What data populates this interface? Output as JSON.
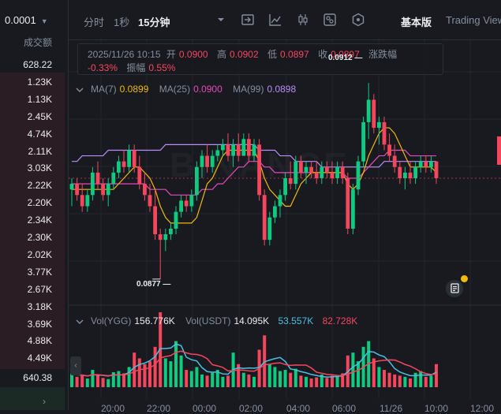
{
  "orderbook": {
    "precision": "0.0001",
    "column_header": "成交额",
    "asks": [
      "628.22",
      "1.23K",
      "1.13K",
      "2.45K",
      "4.74K",
      "2.11K",
      "3.03K",
      "2.22K",
      "2.20K",
      "2.34K",
      "2.30K",
      "2.02K",
      "3.77K",
      "2.67K",
      "3.18K",
      "3.69K",
      "4.88K",
      "4.49K"
    ],
    "bid_top": "640.38"
  },
  "toolbar": {
    "intervals": [
      "分时",
      "1秒",
      "15分钟"
    ],
    "active_interval": "15分钟",
    "icons": [
      "chevron-down-icon",
      "indicator-template-icon",
      "line-chart-icon",
      "candle-style-icon",
      "settings-toggle-icon",
      "hexagon-settings-icon"
    ],
    "view_basic": "基本版",
    "view_tradingview": "Trading View"
  },
  "info": {
    "datetime": "2025/11/26 10:15",
    "open_label": "开",
    "open": "0.0900",
    "high_label": "高",
    "high": "0.0902",
    "low_label": "低",
    "low": "0.0897",
    "close_label": "收",
    "close": "0.0897",
    "change_label": "涨跌幅",
    "change": "-0.33%",
    "amplitude_label": "振幅",
    "amplitude": "0.55%"
  },
  "ma": {
    "ma7_label": "MA(7)",
    "ma7": "0.0899",
    "ma25_label": "MA(25)",
    "ma25": "0.0900",
    "ma99_label": "MA(99)",
    "ma99": "0.0898"
  },
  "volume": {
    "ygg_label": "Vol(YGG)",
    "ygg": "156.776K",
    "usdt_label": "Vol(USDT)",
    "usdt": "14.095K",
    "ma5": "53.557K",
    "ma10": "82.728K"
  },
  "markers": {
    "high": "0.0912",
    "low": "0.0877"
  },
  "watermark": "BINANCE",
  "x_axis": [
    "20:00",
    "22:00",
    "00:00",
    "02:00",
    "04:00",
    "06:00",
    "11/26",
    "10:00",
    "12:00"
  ],
  "colors": {
    "up": "#0ecb81",
    "down": "#f6465d",
    "ma7": "#f0b90b",
    "ma25": "#e24bbd",
    "ma99": "#b98ef6",
    "vol_ma5": "#4bc0e0",
    "vol_ma10": "#f6465d"
  },
  "chart_data": {
    "type": "candlestick",
    "interval": "15m",
    "candles": [
      {
        "o": 0.0893,
        "h": 0.0895,
        "l": 0.089,
        "c": 0.0894,
        "v": 25
      },
      {
        "o": 0.0894,
        "h": 0.0895,
        "l": 0.0891,
        "c": 0.0892,
        "v": 18
      },
      {
        "o": 0.0892,
        "h": 0.0894,
        "l": 0.0889,
        "c": 0.089,
        "v": 20
      },
      {
        "o": 0.089,
        "h": 0.0893,
        "l": 0.0889,
        "c": 0.0892,
        "v": 15
      },
      {
        "o": 0.0892,
        "h": 0.0897,
        "l": 0.0891,
        "c": 0.0896,
        "v": 30
      },
      {
        "o": 0.0896,
        "h": 0.0898,
        "l": 0.0893,
        "c": 0.0894,
        "v": 22
      },
      {
        "o": 0.0894,
        "h": 0.0895,
        "l": 0.0891,
        "c": 0.0892,
        "v": 16
      },
      {
        "o": 0.0892,
        "h": 0.0895,
        "l": 0.089,
        "c": 0.0894,
        "v": 14
      },
      {
        "o": 0.0894,
        "h": 0.0897,
        "l": 0.0893,
        "c": 0.0896,
        "v": 26
      },
      {
        "o": 0.0896,
        "h": 0.0899,
        "l": 0.0895,
        "c": 0.0898,
        "v": 28
      },
      {
        "o": 0.0898,
        "h": 0.09,
        "l": 0.0896,
        "c": 0.0897,
        "v": 24
      },
      {
        "o": 0.0897,
        "h": 0.0901,
        "l": 0.0896,
        "c": 0.09,
        "v": 35
      },
      {
        "o": 0.09,
        "h": 0.0901,
        "l": 0.0896,
        "c": 0.0897,
        "v": 60
      },
      {
        "o": 0.0897,
        "h": 0.0899,
        "l": 0.0893,
        "c": 0.0894,
        "v": 50
      },
      {
        "o": 0.0894,
        "h": 0.0896,
        "l": 0.0891,
        "c": 0.0892,
        "v": 40
      },
      {
        "o": 0.0892,
        "h": 0.0894,
        "l": 0.0889,
        "c": 0.089,
        "v": 45
      },
      {
        "o": 0.089,
        "h": 0.0893,
        "l": 0.0884,
        "c": 0.0885,
        "v": 70
      },
      {
        "o": 0.0885,
        "h": 0.0886,
        "l": 0.0877,
        "c": 0.0884,
        "v": 130
      },
      {
        "o": 0.0884,
        "h": 0.0886,
        "l": 0.0882,
        "c": 0.0885,
        "v": 50
      },
      {
        "o": 0.0885,
        "h": 0.0887,
        "l": 0.0884,
        "c": 0.0886,
        "v": 45
      },
      {
        "o": 0.0886,
        "h": 0.089,
        "l": 0.0885,
        "c": 0.0889,
        "v": 80
      },
      {
        "o": 0.0889,
        "h": 0.0892,
        "l": 0.0888,
        "c": 0.0891,
        "v": 55
      },
      {
        "o": 0.0891,
        "h": 0.0892,
        "l": 0.0889,
        "c": 0.089,
        "v": 30
      },
      {
        "o": 0.089,
        "h": 0.0893,
        "l": 0.0889,
        "c": 0.0892,
        "v": 28
      },
      {
        "o": 0.0892,
        "h": 0.0898,
        "l": 0.0891,
        "c": 0.0897,
        "v": 35
      },
      {
        "o": 0.0897,
        "h": 0.09,
        "l": 0.0895,
        "c": 0.0899,
        "v": 22
      },
      {
        "o": 0.0899,
        "h": 0.0901,
        "l": 0.0896,
        "c": 0.0897,
        "v": 20
      },
      {
        "o": 0.0897,
        "h": 0.09,
        "l": 0.0896,
        "c": 0.0899,
        "v": 25
      },
      {
        "o": 0.0899,
        "h": 0.0901,
        "l": 0.0898,
        "c": 0.09,
        "v": 30
      },
      {
        "o": 0.09,
        "h": 0.0902,
        "l": 0.0899,
        "c": 0.0901,
        "v": 18
      },
      {
        "o": 0.0901,
        "h": 0.0903,
        "l": 0.0898,
        "c": 0.0899,
        "v": 20
      },
      {
        "o": 0.0899,
        "h": 0.0902,
        "l": 0.0897,
        "c": 0.0901,
        "v": 60
      },
      {
        "o": 0.0901,
        "h": 0.0903,
        "l": 0.0898,
        "c": 0.0899,
        "v": 40
      },
      {
        "o": 0.0899,
        "h": 0.0903,
        "l": 0.0899,
        "c": 0.0902,
        "v": 25
      },
      {
        "o": 0.0902,
        "h": 0.0903,
        "l": 0.0898,
        "c": 0.0899,
        "v": 22
      },
      {
        "o": 0.0899,
        "h": 0.0902,
        "l": 0.0898,
        "c": 0.0901,
        "v": 18
      },
      {
        "o": 0.0901,
        "h": 0.0902,
        "l": 0.0891,
        "c": 0.0892,
        "v": 65
      },
      {
        "o": 0.0892,
        "h": 0.0893,
        "l": 0.0883,
        "c": 0.0884,
        "v": 90
      },
      {
        "o": 0.0884,
        "h": 0.0889,
        "l": 0.0883,
        "c": 0.0888,
        "v": 40
      },
      {
        "o": 0.0888,
        "h": 0.0891,
        "l": 0.0887,
        "c": 0.089,
        "v": 35
      },
      {
        "o": 0.089,
        "h": 0.0893,
        "l": 0.0888,
        "c": 0.0892,
        "v": 28
      },
      {
        "o": 0.0892,
        "h": 0.0896,
        "l": 0.0891,
        "c": 0.0895,
        "v": 30
      },
      {
        "o": 0.0895,
        "h": 0.0898,
        "l": 0.0893,
        "c": 0.0894,
        "v": 25
      },
      {
        "o": 0.0894,
        "h": 0.0899,
        "l": 0.0893,
        "c": 0.0898,
        "v": 32
      },
      {
        "o": 0.0898,
        "h": 0.0899,
        "l": 0.0895,
        "c": 0.0896,
        "v": 20
      },
      {
        "o": 0.0896,
        "h": 0.0898,
        "l": 0.0894,
        "c": 0.0897,
        "v": 18
      },
      {
        "o": 0.0897,
        "h": 0.0898,
        "l": 0.0895,
        "c": 0.0896,
        "v": 15
      },
      {
        "o": 0.0896,
        "h": 0.0898,
        "l": 0.0894,
        "c": 0.0895,
        "v": 17
      },
      {
        "o": 0.0895,
        "h": 0.0898,
        "l": 0.0894,
        "c": 0.0897,
        "v": 22
      },
      {
        "o": 0.0897,
        "h": 0.0898,
        "l": 0.0895,
        "c": 0.0896,
        "v": 16
      },
      {
        "o": 0.0896,
        "h": 0.0898,
        "l": 0.0894,
        "c": 0.0895,
        "v": 20
      },
      {
        "o": 0.0895,
        "h": 0.0898,
        "l": 0.0894,
        "c": 0.0897,
        "v": 18
      },
      {
        "o": 0.0897,
        "h": 0.0898,
        "l": 0.0894,
        "c": 0.0895,
        "v": 24
      },
      {
        "o": 0.0895,
        "h": 0.0896,
        "l": 0.0885,
        "c": 0.0886,
        "v": 55
      },
      {
        "o": 0.0886,
        "h": 0.0894,
        "l": 0.0885,
        "c": 0.0893,
        "v": 60
      },
      {
        "o": 0.0893,
        "h": 0.0899,
        "l": 0.0892,
        "c": 0.0898,
        "v": 45
      },
      {
        "o": 0.0898,
        "h": 0.0906,
        "l": 0.0897,
        "c": 0.0905,
        "v": 70
      },
      {
        "o": 0.0905,
        "h": 0.0912,
        "l": 0.0902,
        "c": 0.0909,
        "v": 80
      },
      {
        "o": 0.0909,
        "h": 0.091,
        "l": 0.0903,
        "c": 0.0904,
        "v": 50
      },
      {
        "o": 0.0904,
        "h": 0.0906,
        "l": 0.0901,
        "c": 0.0905,
        "v": 35
      },
      {
        "o": 0.0905,
        "h": 0.0906,
        "l": 0.09,
        "c": 0.0901,
        "v": 30
      },
      {
        "o": 0.0901,
        "h": 0.0903,
        "l": 0.0898,
        "c": 0.0899,
        "v": 25
      },
      {
        "o": 0.0899,
        "h": 0.0901,
        "l": 0.0896,
        "c": 0.0897,
        "v": 22
      },
      {
        "o": 0.0897,
        "h": 0.0898,
        "l": 0.0894,
        "c": 0.0895,
        "v": 20
      },
      {
        "o": 0.0895,
        "h": 0.0897,
        "l": 0.0893,
        "c": 0.0896,
        "v": 18
      },
      {
        "o": 0.0896,
        "h": 0.0898,
        "l": 0.0894,
        "c": 0.0895,
        "v": 15
      },
      {
        "o": 0.0895,
        "h": 0.0898,
        "l": 0.0894,
        "c": 0.0897,
        "v": 25
      },
      {
        "o": 0.0897,
        "h": 0.0899,
        "l": 0.0896,
        "c": 0.0898,
        "v": 28
      },
      {
        "o": 0.0898,
        "h": 0.0899,
        "l": 0.0896,
        "c": 0.0897,
        "v": 18
      },
      {
        "o": 0.0897,
        "h": 0.0899,
        "l": 0.0896,
        "c": 0.0898,
        "v": 20
      },
      {
        "o": 0.0898,
        "h": 0.0898,
        "l": 0.0894,
        "c": 0.0895,
        "v": 40
      }
    ],
    "ma7": [
      0.0893,
      0.0893,
      0.0893,
      0.0893,
      0.0893,
      0.0893,
      0.0893,
      0.0893,
      0.0893,
      0.0894,
      0.0895,
      0.0896,
      0.0897,
      0.0897,
      0.0896,
      0.0895,
      0.0893,
      0.089,
      0.0888,
      0.0887,
      0.0887,
      0.0887,
      0.0887,
      0.0887,
      0.0888,
      0.0891,
      0.0894,
      0.0895,
      0.0897,
      0.0899,
      0.09,
      0.09,
      0.09,
      0.09,
      0.09,
      0.09,
      0.0898,
      0.0895,
      0.0893,
      0.0892,
      0.0891,
      0.089,
      0.089,
      0.0892,
      0.0894,
      0.0895,
      0.0896,
      0.0896,
      0.0896,
      0.0896,
      0.0896,
      0.0896,
      0.0896,
      0.0894,
      0.0893,
      0.0894,
      0.0896,
      0.0899,
      0.0901,
      0.0903,
      0.0904,
      0.0904,
      0.0903,
      0.0901,
      0.0899,
      0.0897,
      0.0897,
      0.0897,
      0.0897,
      0.0897,
      0.0896
    ],
    "ma25": [
      0.0894,
      0.0894,
      0.0894,
      0.0894,
      0.0894,
      0.0894,
      0.0894,
      0.0894,
      0.0894,
      0.0894,
      0.0894,
      0.0894,
      0.0894,
      0.0894,
      0.0894,
      0.0893,
      0.0893,
      0.0893,
      0.0893,
      0.0892,
      0.0892,
      0.0892,
      0.0892,
      0.0892,
      0.0892,
      0.0893,
      0.0893,
      0.0893,
      0.0894,
      0.0894,
      0.0895,
      0.0896,
      0.0897,
      0.0897,
      0.0898,
      0.0898,
      0.0898,
      0.0897,
      0.0897,
      0.0896,
      0.0896,
      0.0896,
      0.0896,
      0.0896,
      0.0896,
      0.0896,
      0.0896,
      0.0896,
      0.0896,
      0.0896,
      0.0896,
      0.0896,
      0.0896,
      0.0895,
      0.0895,
      0.0895,
      0.0896,
      0.0897,
      0.0898,
      0.0899,
      0.0899,
      0.09,
      0.09,
      0.09,
      0.09,
      0.0899,
      0.0899,
      0.0899,
      0.0899,
      0.0899,
      0.0899
    ],
    "ma99": [
      0.0898,
      0.0898,
      0.0899,
      0.0899,
      0.0899,
      0.0899,
      0.0899,
      0.09,
      0.09,
      0.09,
      0.09,
      0.09,
      0.09,
      0.09,
      0.09,
      0.09,
      0.09,
      0.09,
      0.0901,
      0.0901,
      0.0901,
      0.0901,
      0.0901,
      0.0901,
      0.0901,
      0.0901,
      0.0901,
      0.0901,
      0.0901,
      0.0901,
      0.0901,
      0.0901,
      0.0901,
      0.0901,
      0.0901,
      0.0901,
      0.09,
      0.09,
      0.09,
      0.09,
      0.0899,
      0.0899,
      0.0899,
      0.0898,
      0.0898,
      0.0898,
      0.0898,
      0.0898,
      0.0897,
      0.0897,
      0.0897,
      0.0897,
      0.0897,
      0.0897,
      0.0897,
      0.0897,
      0.0897,
      0.0897,
      0.0897,
      0.0897,
      0.0898,
      0.0898,
      0.0898,
      0.0898,
      0.0898,
      0.0898,
      0.0898,
      0.0898,
      0.0898,
      0.0898,
      0.0898
    ],
    "price_range": [
      0.0876,
      0.0914
    ]
  }
}
